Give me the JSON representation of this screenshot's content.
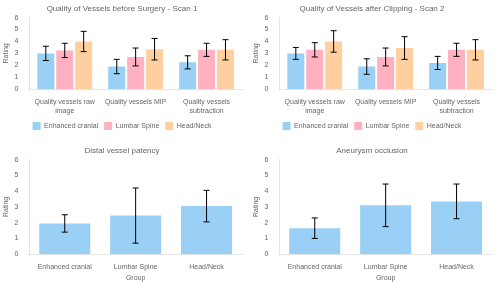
{
  "chart_data": [
    {
      "type": "bar",
      "title": "Quality of Vessels before Surgery - Scan 1",
      "categories": [
        "Quality vessels raw\nimage",
        "Quality vessels MIP",
        "Quality vessels\nsubtraction"
      ],
      "series": [
        {
          "name": "Enhanced cranial",
          "values": [
            3.0,
            1.9,
            2.25
          ],
          "errors": [
            0.6,
            0.6,
            0.55
          ]
        },
        {
          "name": "Lumbar Spine",
          "values": [
            3.25,
            2.7,
            3.3
          ],
          "errors": [
            0.6,
            0.75,
            0.55
          ]
        },
        {
          "name": "Head/Neck",
          "values": [
            4.0,
            3.35,
            3.3
          ],
          "errors": [
            0.85,
            0.9,
            0.85
          ]
        }
      ],
      "ylabel": "Rating",
      "ylim": [
        0,
        6
      ],
      "yticks": [
        0,
        1,
        2,
        3,
        4,
        5,
        6
      ],
      "grid": false,
      "legend": "bottom"
    },
    {
      "type": "bar",
      "title": "Quality of Vessels after Clipping - Scan 2",
      "categories": [
        "Quality vessels raw\nimage",
        "Quality vessels MIP",
        "Quality vessels\nsubtraction"
      ],
      "series": [
        {
          "name": "Enhanced cranial",
          "values": [
            3.0,
            1.9,
            2.2
          ],
          "errors": [
            0.5,
            0.65,
            0.55
          ]
        },
        {
          "name": "Lumbar Spine",
          "values": [
            3.3,
            2.7,
            3.3
          ],
          "errors": [
            0.6,
            0.75,
            0.55
          ]
        },
        {
          "name": "Head/Neck",
          "values": [
            4.0,
            3.45,
            3.3
          ],
          "errors": [
            0.9,
            0.95,
            0.85
          ]
        }
      ],
      "ylabel": "Rating",
      "ylim": [
        0,
        6
      ],
      "yticks": [
        0,
        1,
        2,
        3,
        4,
        5,
        6
      ],
      "grid": false,
      "legend": "bottom"
    },
    {
      "type": "bar",
      "title": "Distal vessel patency",
      "categories": [
        "Enhanced cranial",
        "Lumbar Spine",
        "Head/Neck"
      ],
      "values": [
        1.95,
        2.45,
        3.05
      ],
      "errors": [
        0.55,
        1.75,
        1.0
      ],
      "xlabel": "Group",
      "ylabel": "Rating",
      "ylim": [
        0,
        6
      ],
      "yticks": [
        0,
        1,
        2,
        3,
        4,
        5,
        6
      ],
      "grid": false
    },
    {
      "type": "bar",
      "title": "Aneurysm occlusion",
      "categories": [
        "Enhanced cranial",
        "Lumbar Spine",
        "Head/Neck"
      ],
      "values": [
        1.65,
        3.1,
        3.35
      ],
      "errors": [
        0.65,
        1.35,
        1.1
      ],
      "xlabel": "Group",
      "ylabel": "Rating",
      "ylim": [
        0,
        6
      ],
      "yticks": [
        0,
        1,
        2,
        3,
        4,
        5,
        6
      ],
      "grid": false
    }
  ]
}
